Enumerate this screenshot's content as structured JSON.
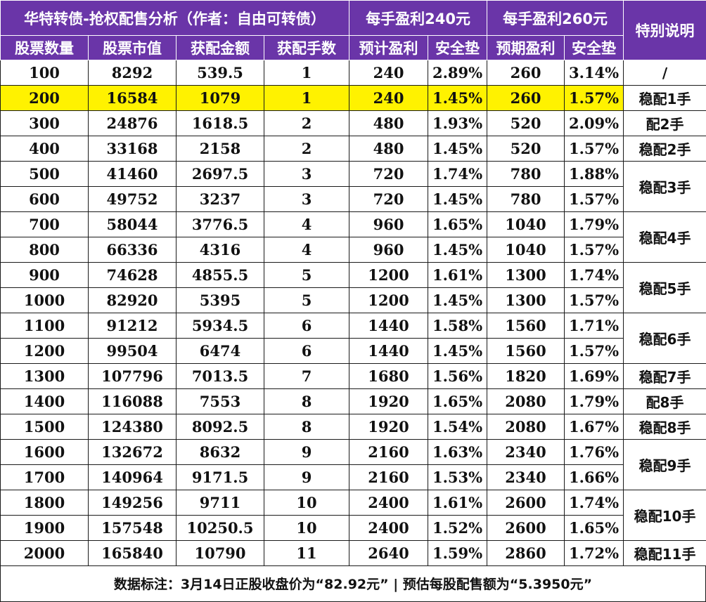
{
  "header": {
    "title": "华特转债-抢权配售分析（作者：自由可转债）",
    "group240": "每手盈利240元",
    "group260": "每手盈利260元",
    "special": "特别说明",
    "columns": [
      "股票数量",
      "股票市值",
      "获配金额",
      "获配手数",
      "预计盈利",
      "安全垫",
      "预期盈利",
      "安全垫"
    ]
  },
  "rows": [
    [
      "100",
      "8292",
      "539.5",
      "1",
      "240",
      "2.89%",
      "260",
      "3.14%"
    ],
    [
      "200",
      "16584",
      "1079",
      "1",
      "240",
      "1.45%",
      "260",
      "1.57%"
    ],
    [
      "300",
      "24876",
      "1618.5",
      "2",
      "480",
      "1.93%",
      "520",
      "2.09%"
    ],
    [
      "400",
      "33168",
      "2158",
      "2",
      "480",
      "1.45%",
      "520",
      "1.57%"
    ],
    [
      "500",
      "41460",
      "2697.5",
      "3",
      "720",
      "1.74%",
      "780",
      "1.88%"
    ],
    [
      "600",
      "49752",
      "3237",
      "3",
      "720",
      "1.45%",
      "780",
      "1.57%"
    ],
    [
      "700",
      "58044",
      "3776.5",
      "4",
      "960",
      "1.65%",
      "1040",
      "1.79%"
    ],
    [
      "800",
      "66336",
      "4316",
      "4",
      "960",
      "1.45%",
      "1040",
      "1.57%"
    ],
    [
      "900",
      "74628",
      "4855.5",
      "5",
      "1200",
      "1.61%",
      "1300",
      "1.74%"
    ],
    [
      "1000",
      "82920",
      "5395",
      "5",
      "1200",
      "1.45%",
      "1300",
      "1.57%"
    ],
    [
      "1100",
      "91212",
      "5934.5",
      "6",
      "1440",
      "1.58%",
      "1560",
      "1.71%"
    ],
    [
      "1200",
      "99504",
      "6474",
      "6",
      "1440",
      "1.45%",
      "1560",
      "1.57%"
    ],
    [
      "1300",
      "107796",
      "7013.5",
      "7",
      "1680",
      "1.56%",
      "1820",
      "1.69%"
    ],
    [
      "1400",
      "116088",
      "7553",
      "8",
      "1920",
      "1.65%",
      "2080",
      "1.79%"
    ],
    [
      "1500",
      "124380",
      "8092.5",
      "8",
      "1920",
      "1.54%",
      "2080",
      "1.67%"
    ],
    [
      "1600",
      "132672",
      "8632",
      "9",
      "2160",
      "1.63%",
      "2340",
      "1.76%"
    ],
    [
      "1700",
      "140964",
      "9171.5",
      "9",
      "2160",
      "1.53%",
      "2340",
      "1.66%"
    ],
    [
      "1800",
      "149256",
      "9711",
      "10",
      "2400",
      "1.61%",
      "2600",
      "1.74%"
    ],
    [
      "1900",
      "157548",
      "10250.5",
      "10",
      "2400",
      "1.52%",
      "2600",
      "1.65%"
    ],
    [
      "2000",
      "165840",
      "10790",
      "11",
      "2640",
      "1.59%",
      "2860",
      "1.72%"
    ]
  ],
  "highlight_row": 1,
  "notes": [
    {
      "text": "/",
      "start": 0,
      "span": 1
    },
    {
      "text": "稳配1手",
      "start": 1,
      "span": 1
    },
    {
      "text": "配2手",
      "start": 2,
      "span": 1
    },
    {
      "text": "稳配2手",
      "start": 3,
      "span": 1
    },
    {
      "text": "稳配3手",
      "start": 4,
      "span": 2
    },
    {
      "text": "稳配4手",
      "start": 6,
      "span": 2
    },
    {
      "text": "稳配5手",
      "start": 8,
      "span": 2
    },
    {
      "text": "稳配6手",
      "start": 10,
      "span": 2
    },
    {
      "text": "稳配7手",
      "start": 12,
      "span": 1
    },
    {
      "text": "配8手",
      "start": 13,
      "span": 1
    },
    {
      "text": "稳配8手",
      "start": 14,
      "span": 1
    },
    {
      "text": "稳配9手",
      "start": 15,
      "span": 2
    },
    {
      "text": "稳配10手",
      "start": 17,
      "span": 2
    },
    {
      "text": "稳配11手",
      "start": 19,
      "span": 1
    }
  ],
  "footer": "数据标注：3月14日正股收盘价为“82.92元” | 预估每股配售额为“5.3950元”",
  "colors": {
    "header_bg": "#6a35a8",
    "highlight": "#fff200"
  }
}
